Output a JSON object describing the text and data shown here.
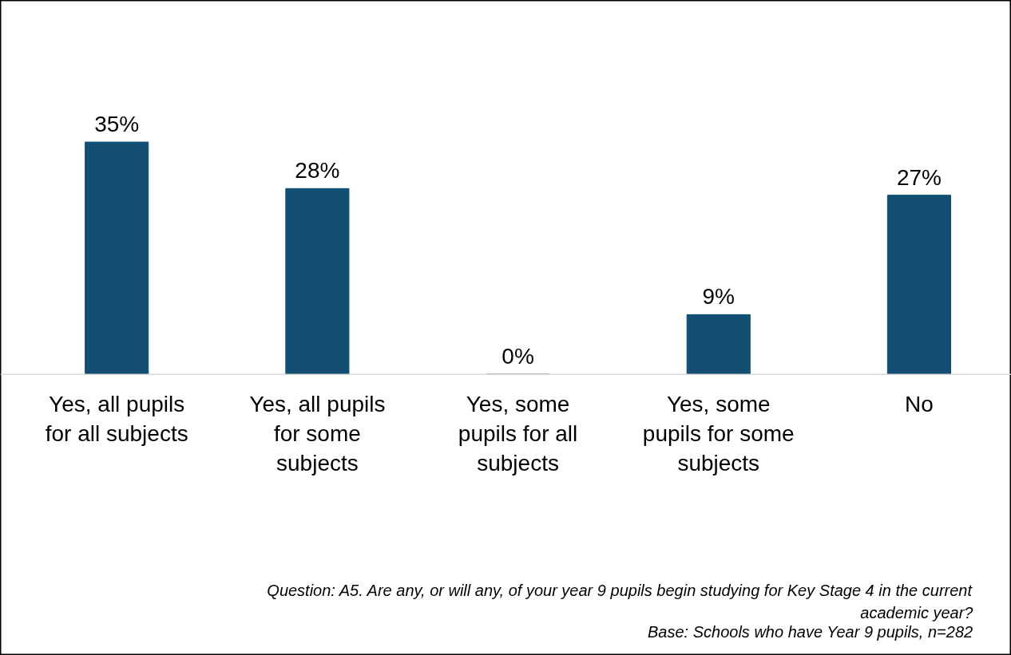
{
  "chart_data": {
    "type": "bar",
    "categories": [
      "Yes, all pupils\nfor all subjects",
      "Yes, all pupils\nfor some\nsubjects",
      "Yes, some\npupils for all\nsubjects",
      "Yes, some\npupils for some\nsubjects",
      "No"
    ],
    "values": [
      35,
      28,
      0,
      9,
      27
    ],
    "value_labels": [
      "35%",
      "28%",
      "0%",
      "9%",
      "27%"
    ],
    "color": "#124f72",
    "grid": false,
    "annotations": [
      "Question: A5. Are any, or will any, of your year 9 pupils begin studying for Key Stage 4 in the current academic year?",
      "Base: Schools who have Year 9 pupils, n=282"
    ]
  }
}
